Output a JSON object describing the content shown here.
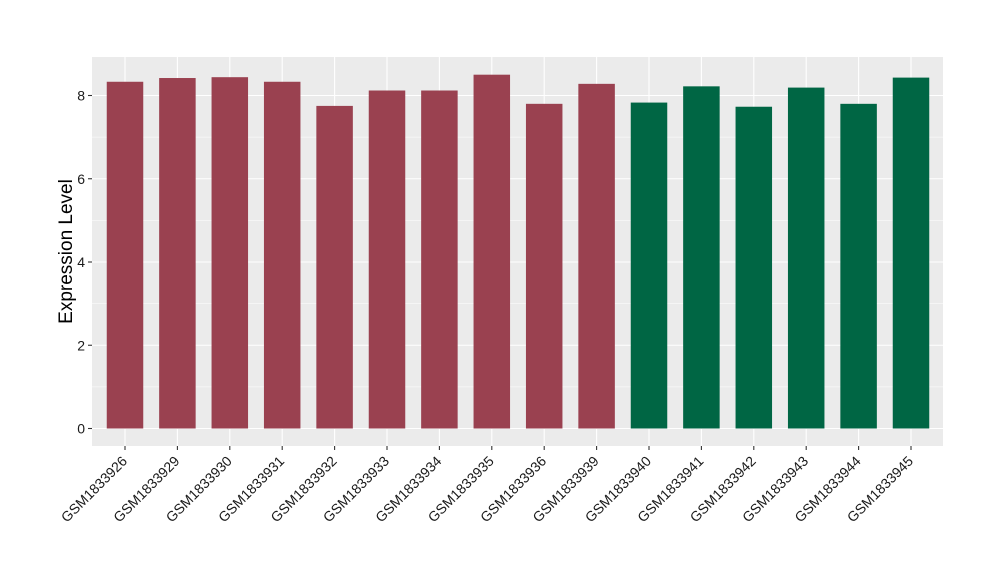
{
  "chart_data": {
    "type": "bar",
    "title": "",
    "xlabel": "",
    "ylabel": "Expression Level",
    "ylim": [
      0,
      8.9
    ],
    "yticks": [
      0,
      2,
      4,
      6,
      8
    ],
    "grid": true,
    "legend": "none",
    "categories": [
      "GSM1833926",
      "GSM1833929",
      "GSM1833930",
      "GSM1833931",
      "GSM1833932",
      "GSM1833933",
      "GSM1833934",
      "GSM1833935",
      "GSM1833936",
      "GSM1833939",
      "GSM1833940",
      "GSM1833941",
      "GSM1833942",
      "GSM1833943",
      "GSM1833944",
      "GSM1833945"
    ],
    "values": [
      8.33,
      8.42,
      8.44,
      8.33,
      7.75,
      8.12,
      8.12,
      8.5,
      7.8,
      8.28,
      7.83,
      8.22,
      7.73,
      8.19,
      7.8,
      8.43
    ],
    "groups": [
      0,
      0,
      0,
      0,
      0,
      0,
      0,
      0,
      0,
      0,
      1,
      1,
      1,
      1,
      1,
      1
    ],
    "group_colors": [
      "#9A4150",
      "#006644"
    ],
    "panel_background": "#EBEBEB",
    "grid_color": "#FFFFFF"
  }
}
